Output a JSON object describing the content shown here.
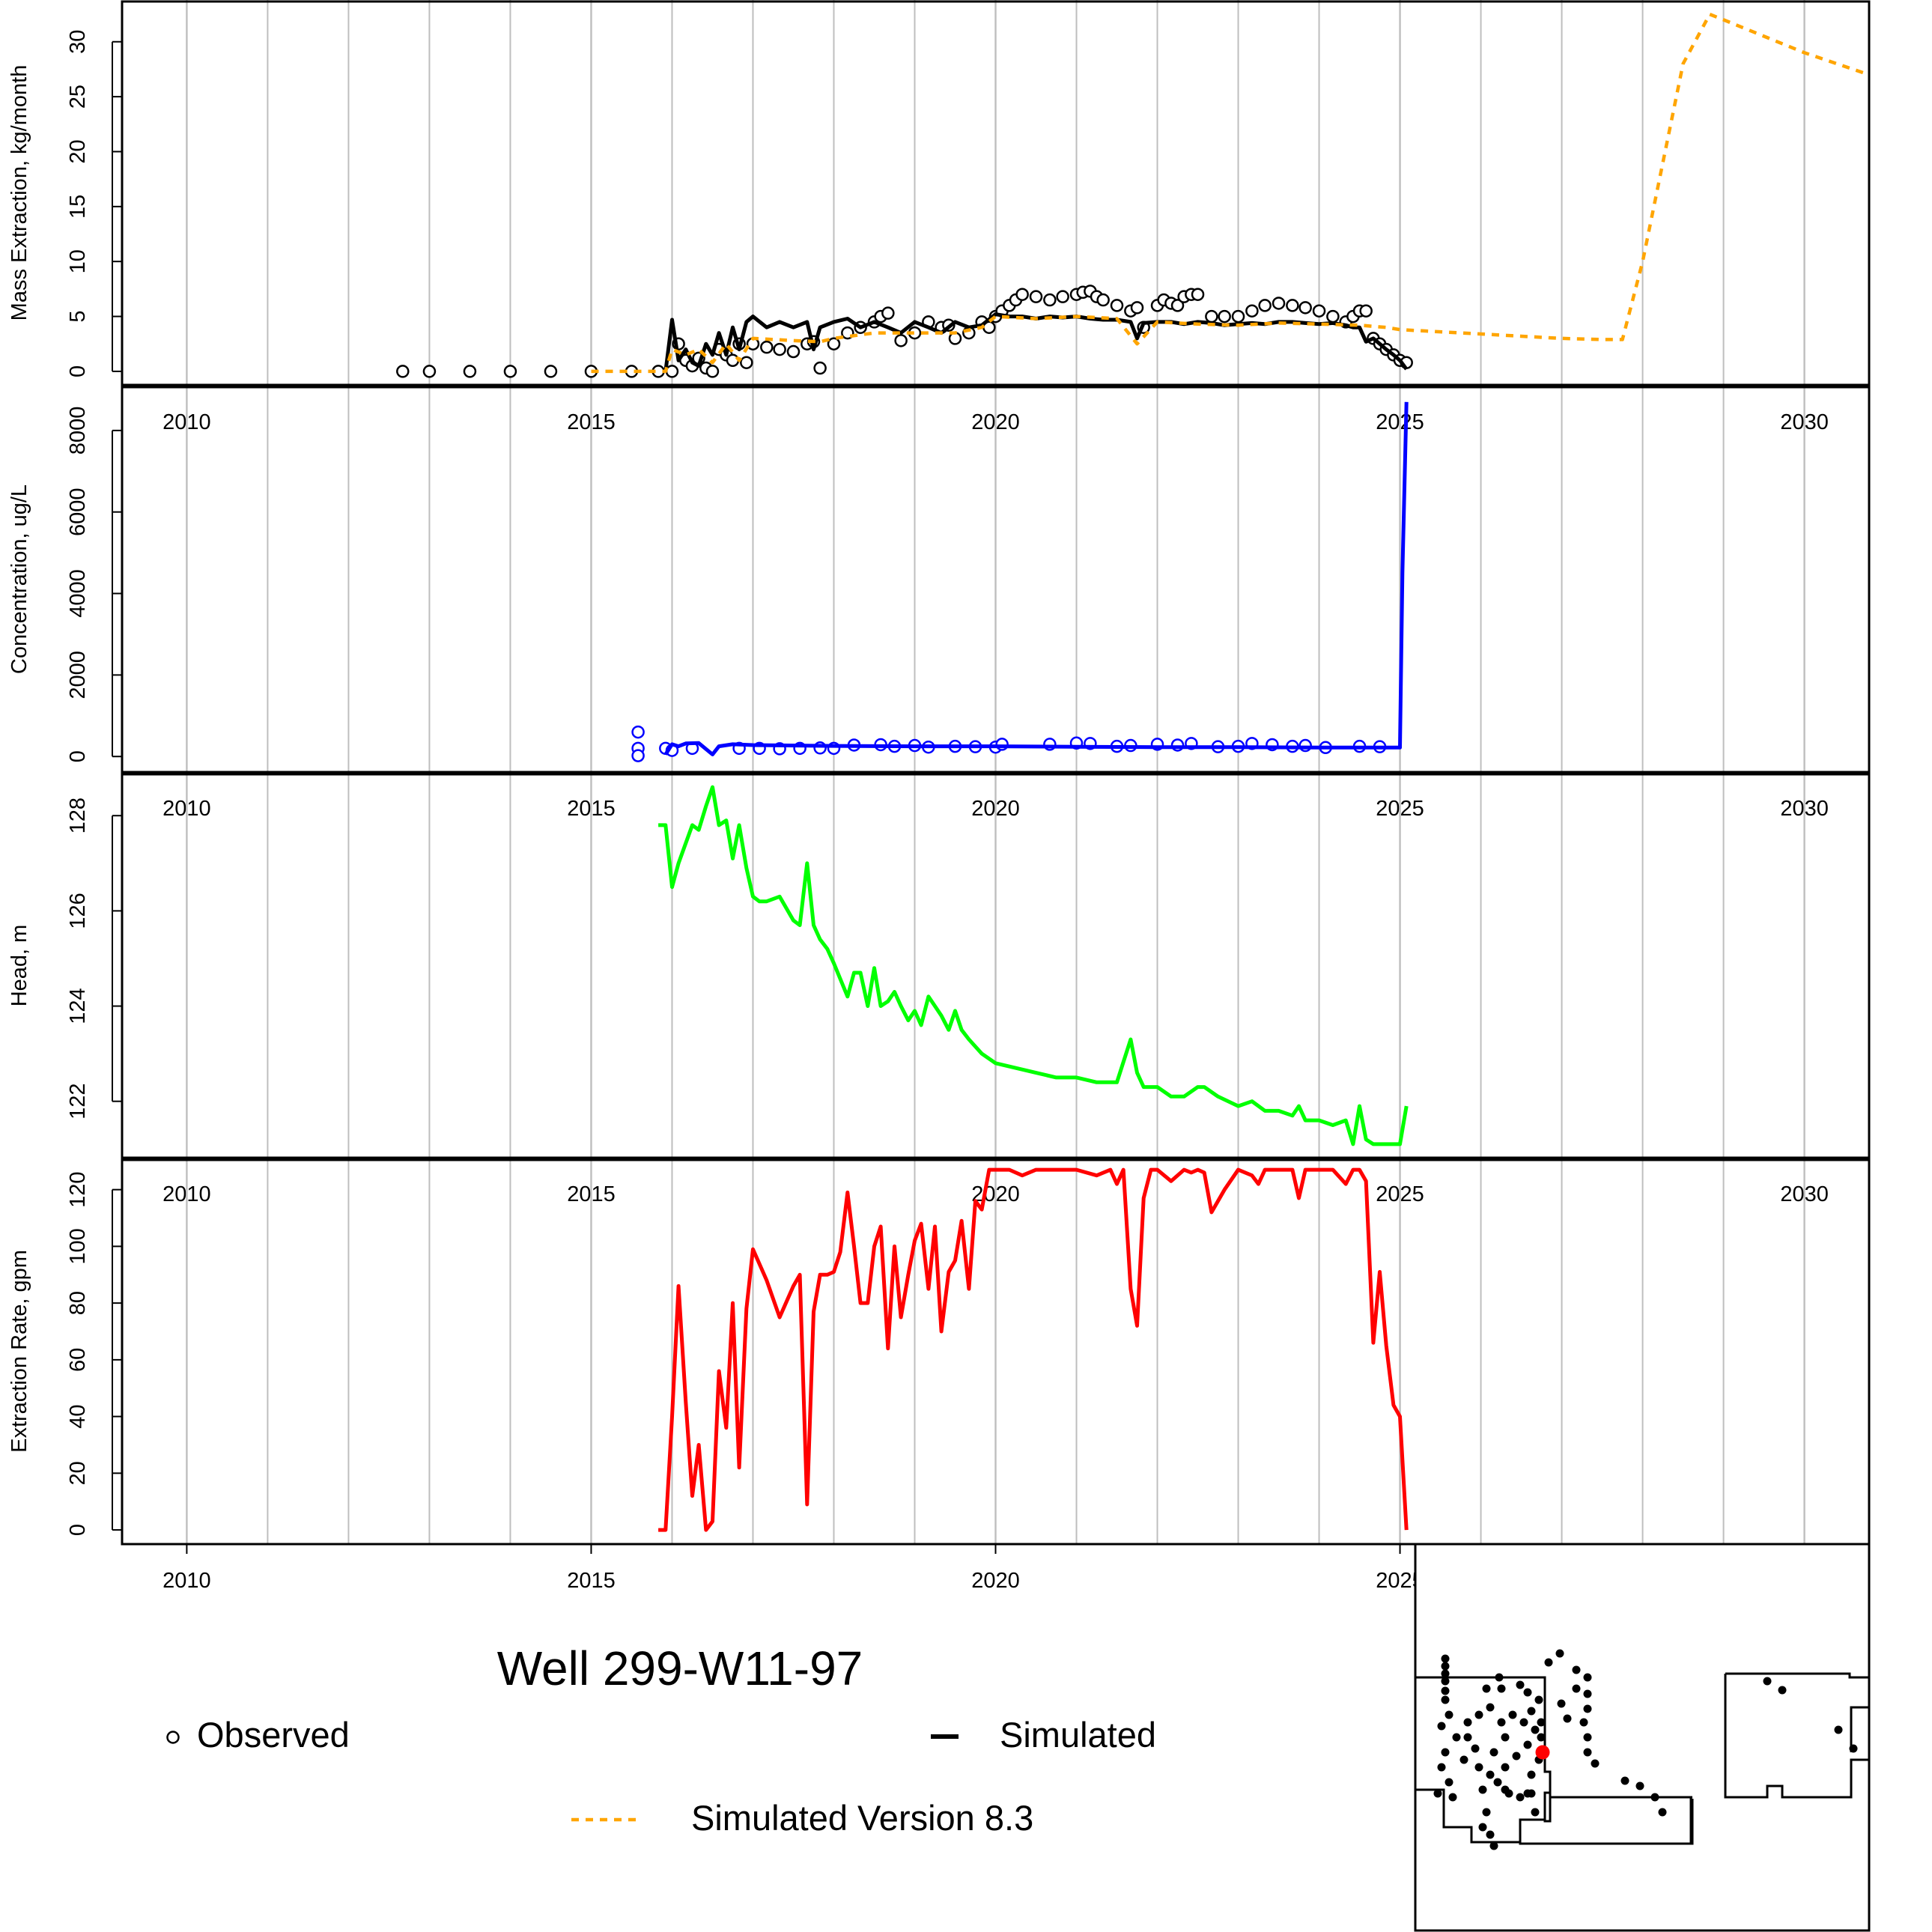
{
  "title": "Well 299-W11-97",
  "legend": {
    "observed": "Observed",
    "simulated": "Simulated",
    "simulated_v83": "Simulated Version 8.3"
  },
  "colors": {
    "observed": "#000000",
    "simulated": "#000000",
    "simulated_v83": "#FFA500",
    "concentration": "#0000FF",
    "head": "#00FF00",
    "extraction_rate": "#FF0000",
    "grid": "#BEBEBE",
    "map_selected_well": "#FF0000"
  },
  "chart_data": [
    {
      "type": "line",
      "panel": "mass",
      "xlabel": "",
      "ylabel": "Mass Extraction, kg/month",
      "xlim": [
        2009.2,
        2030.8
      ],
      "ylim": [
        -1.3,
        33.8
      ],
      "x_ticks": [
        2010,
        2015,
        2020,
        2025,
        2030
      ],
      "y_ticks": [
        0,
        5,
        10,
        15,
        20,
        25,
        30
      ],
      "grid": "vertical, yearly",
      "series": [
        {
          "name": "Observed",
          "style": "open-circles",
          "x": [
            2012.67,
            2013.0,
            2013.5,
            2014.0,
            2014.5,
            2015.0,
            2015.5,
            2015.83,
            2016.0,
            2016.08,
            2016.17,
            2016.25,
            2016.33,
            2016.42,
            2016.5,
            2016.58,
            2016.67,
            2016.75,
            2016.83,
            2016.92,
            2017.0,
            2017.17,
            2017.33,
            2017.5,
            2017.67,
            2017.75,
            2017.83,
            2018.0,
            2018.17,
            2018.33,
            2018.5,
            2018.58,
            2018.67,
            2018.83,
            2019.0,
            2019.17,
            2019.33,
            2019.42,
            2019.5,
            2019.67,
            2019.83,
            2019.92,
            2020.0,
            2020.08,
            2020.17,
            2020.25,
            2020.33,
            2020.5,
            2020.67,
            2020.83,
            2021.0,
            2021.08,
            2021.17,
            2021.25,
            2021.33,
            2021.5,
            2021.67,
            2021.75,
            2021.83,
            2022.0,
            2022.08,
            2022.17,
            2022.25,
            2022.33,
            2022.42,
            2022.5,
            2022.67,
            2022.83,
            2023.0,
            2023.17,
            2023.33,
            2023.5,
            2023.67,
            2023.83,
            2024.0,
            2024.17,
            2024.33,
            2024.42,
            2024.5,
            2024.58,
            2024.67,
            2024.75,
            2024.83,
            2024.92,
            2025.0,
            2025.08
          ],
          "y": [
            0,
            0,
            0,
            0,
            0,
            0,
            0,
            0,
            0,
            2.5,
            1.0,
            0.5,
            1.2,
            0.3,
            0,
            2.0,
            1.5,
            1.0,
            2.5,
            0.8,
            2.5,
            2.2,
            2.0,
            1.8,
            2.5,
            2.7,
            0.3,
            2.5,
            3.5,
            4.0,
            4.5,
            5.0,
            5.3,
            2.8,
            3.5,
            4.5,
            4.0,
            4.2,
            3.0,
            3.5,
            4.5,
            4.0,
            5.0,
            5.5,
            6.0,
            6.5,
            7.0,
            6.8,
            6.5,
            6.8,
            7.0,
            7.2,
            7.3,
            6.8,
            6.5,
            6.0,
            5.5,
            5.8,
            4.0,
            6.0,
            6.5,
            6.2,
            6.0,
            6.8,
            7.0,
            7.0,
            5.0,
            5.0,
            5.0,
            5.5,
            6.0,
            6.2,
            6.0,
            5.8,
            5.5,
            5.0,
            4.5,
            5.0,
            5.5,
            5.5,
            3.0,
            2.5,
            2.0,
            1.5,
            1.0,
            0.8
          ]
        },
        {
          "name": "Simulated",
          "style": "solid",
          "x": [
            2015.92,
            2016.0,
            2016.08,
            2016.17,
            2016.25,
            2016.33,
            2016.42,
            2016.5,
            2016.58,
            2016.67,
            2016.75,
            2016.83,
            2016.92,
            2017.0,
            2017.17,
            2017.33,
            2017.5,
            2017.67,
            2017.75,
            2017.83,
            2018.0,
            2018.17,
            2018.33,
            2018.5,
            2018.67,
            2018.83,
            2019.0,
            2019.17,
            2019.33,
            2019.5,
            2019.67,
            2019.83,
            2020.0,
            2020.17,
            2020.33,
            2020.5,
            2020.67,
            2020.83,
            2021.0,
            2021.17,
            2021.33,
            2021.5,
            2021.67,
            2021.75,
            2021.83,
            2022.0,
            2022.17,
            2022.33,
            2022.5,
            2022.67,
            2022.83,
            2023.0,
            2023.17,
            2023.33,
            2023.5,
            2023.67,
            2023.83,
            2024.0,
            2024.17,
            2024.33,
            2024.42,
            2024.5,
            2024.58,
            2024.67,
            2024.75,
            2024.83,
            2024.92,
            2025.0,
            2025.08
          ],
          "y": [
            0,
            4.7,
            1.0,
            2.0,
            0.8,
            0.5,
            2.5,
            1.5,
            3.5,
            1.5,
            4.0,
            2.0,
            4.5,
            5.0,
            4.0,
            4.5,
            4.0,
            4.5,
            2.0,
            4.0,
            4.5,
            4.8,
            4.0,
            4.5,
            4.0,
            3.5,
            4.5,
            4.0,
            3.5,
            4.5,
            4.0,
            4.2,
            5.2,
            5.0,
            5.0,
            4.8,
            5.0,
            4.9,
            5.0,
            4.8,
            4.7,
            4.7,
            4.5,
            3.0,
            4.4,
            4.5,
            4.5,
            4.3,
            4.5,
            4.4,
            4.2,
            4.3,
            4.4,
            4.3,
            4.5,
            4.5,
            4.4,
            4.3,
            4.4,
            4.2,
            4.0,
            4.0,
            2.7,
            3.0,
            2.5,
            2.0,
            1.5,
            1.0,
            0.2
          ]
        },
        {
          "name": "Simulated Version 8.3",
          "style": "dotted",
          "x": [
            2015.0,
            2015.92,
            2016.0,
            2016.17,
            2016.33,
            2016.5,
            2016.67,
            2016.83,
            2017.0,
            2017.5,
            2017.83,
            2018.0,
            2018.5,
            2019.0,
            2019.5,
            2019.83,
            2020.0,
            2020.5,
            2021.0,
            2021.5,
            2021.75,
            2022.0,
            2022.5,
            2023.0,
            2023.5,
            2024.0,
            2024.5,
            2024.83,
            2025.0,
            2025.5,
            2026.0,
            2026.5,
            2027.0,
            2027.5,
            2027.75,
            2028.0,
            2028.5,
            2028.83,
            2029.0,
            2030.0,
            2030.8
          ],
          "y": [
            0,
            0,
            2.0,
            1.5,
            2.0,
            0.8,
            2.5,
            1.0,
            3.0,
            2.8,
            2.7,
            3.0,
            3.5,
            3.5,
            3.5,
            4.0,
            5.0,
            4.8,
            5.0,
            4.8,
            2.5,
            4.5,
            4.3,
            4.2,
            4.4,
            4.3,
            4.2,
            4.0,
            3.8,
            3.6,
            3.4,
            3.2,
            3.0,
            2.9,
            2.9,
            10.0,
            28.0,
            32.5,
            32.0,
            29.0,
            27.0
          ]
        }
      ]
    },
    {
      "type": "line",
      "panel": "concentration",
      "xlabel": "",
      "ylabel": "Concentration, ug/L",
      "xlim": [
        2009.2,
        2030.8
      ],
      "ylim": [
        -400,
        9100
      ],
      "x_ticks": [
        2010,
        2015,
        2020,
        2025,
        2030
      ],
      "y_ticks": [
        0,
        2000,
        4000,
        6000,
        8000
      ],
      "grid": "vertical, yearly",
      "series": [
        {
          "name": "Observed",
          "style": "open-circles",
          "x": [
            2015.58,
            2015.58,
            2015.58,
            2015.92,
            2016.0,
            2016.25,
            2016.83,
            2017.08,
            2017.33,
            2017.58,
            2017.83,
            2018.0,
            2018.25,
            2018.58,
            2018.75,
            2019.0,
            2019.17,
            2019.5,
            2019.75,
            2020.0,
            2020.08,
            2020.67,
            2021.0,
            2021.17,
            2021.5,
            2021.67,
            2022.0,
            2022.25,
            2022.42,
            2022.75,
            2023.0,
            2023.17,
            2023.42,
            2023.67,
            2023.83,
            2024.08,
            2024.5,
            2024.75
          ],
          "y": [
            600,
            200,
            20,
            200,
            150,
            200,
            200,
            200,
            190,
            200,
            210,
            200,
            280,
            290,
            250,
            270,
            230,
            250,
            240,
            230,
            300,
            300,
            330,
            320,
            250,
            270,
            300,
            280,
            320,
            240,
            250,
            320,
            290,
            250,
            270,
            220,
            250,
            240
          ]
        },
        {
          "name": "Simulated",
          "style": "solid",
          "x": [
            2015.92,
            2016.0,
            2016.08,
            2016.17,
            2016.33,
            2016.5,
            2016.58,
            2016.75,
            2017.0,
            2018.0,
            2019.0,
            2020.0,
            2021.0,
            2022.0,
            2023.0,
            2024.0,
            2025.0,
            2025.03,
            2025.08
          ],
          "y": [
            50,
            300,
            250,
            320,
            330,
            50,
            250,
            300,
            280,
            260,
            250,
            250,
            240,
            230,
            230,
            220,
            220,
            4500,
            8700
          ]
        }
      ]
    },
    {
      "type": "line",
      "panel": "head",
      "xlabel": "",
      "ylabel": "Head, m",
      "xlim": [
        2009.2,
        2030.8
      ],
      "ylim": [
        120.8,
        128.9
      ],
      "x_ticks": [
        2010,
        2015,
        2020,
        2025,
        2030
      ],
      "y_ticks": [
        122,
        124,
        126,
        128
      ],
      "grid": "vertical, yearly",
      "series": [
        {
          "name": "Simulated",
          "style": "solid",
          "x": [
            2015.83,
            2015.92,
            2016.0,
            2016.08,
            2016.25,
            2016.33,
            2016.42,
            2016.5,
            2016.58,
            2016.67,
            2016.75,
            2016.83,
            2016.92,
            2017.0,
            2017.08,
            2017.17,
            2017.33,
            2017.5,
            2017.58,
            2017.67,
            2017.75,
            2017.83,
            2017.92,
            2018.0,
            2018.17,
            2018.25,
            2018.33,
            2018.42,
            2018.5,
            2018.58,
            2018.67,
            2018.75,
            2018.83,
            2018.92,
            2019.0,
            2019.08,
            2019.17,
            2019.25,
            2019.33,
            2019.42,
            2019.5,
            2019.58,
            2019.67,
            2019.83,
            2020.0,
            2020.25,
            2020.5,
            2020.75,
            2021.0,
            2021.25,
            2021.42,
            2021.5,
            2021.67,
            2021.75,
            2021.83,
            2022.0,
            2022.17,
            2022.33,
            2022.5,
            2022.58,
            2022.75,
            2023.0,
            2023.17,
            2023.33,
            2023.5,
            2023.67,
            2023.75,
            2023.83,
            2024.0,
            2024.17,
            2024.33,
            2024.42,
            2024.5,
            2024.58,
            2024.67,
            2024.75,
            2024.92,
            2025.0,
            2025.08
          ],
          "y": [
            127.8,
            127.8,
            126.5,
            127.0,
            127.8,
            127.7,
            128.2,
            128.6,
            127.8,
            127.9,
            127.1,
            127.8,
            126.9,
            126.3,
            126.2,
            126.2,
            126.3,
            125.8,
            125.7,
            127.0,
            125.7,
            125.4,
            125.2,
            124.9,
            124.2,
            124.7,
            124.7,
            124.0,
            124.8,
            124.0,
            124.1,
            124.3,
            124.0,
            123.7,
            123.9,
            123.6,
            124.2,
            124.0,
            123.8,
            123.5,
            123.9,
            123.5,
            123.3,
            123.0,
            122.8,
            122.7,
            122.6,
            122.5,
            122.5,
            122.4,
            122.4,
            122.4,
            123.3,
            122.6,
            122.3,
            122.3,
            122.1,
            122.1,
            122.3,
            122.3,
            122.1,
            121.9,
            122.0,
            121.8,
            121.8,
            121.7,
            121.9,
            121.6,
            121.6,
            121.5,
            121.6,
            121.1,
            121.9,
            121.2,
            121.1,
            121.1,
            121.1,
            121.1,
            121.9
          ]
        }
      ]
    },
    {
      "type": "line",
      "panel": "extraction_rate",
      "xlabel": "",
      "ylabel": "Extraction Rate, gpm",
      "xlim": [
        2009.2,
        2030.8
      ],
      "ylim": [
        -5,
        131
      ],
      "x_ticks": [
        2010,
        2015,
        2020,
        2025,
        2030
      ],
      "y_ticks": [
        0,
        20,
        40,
        60,
        80,
        100,
        120
      ],
      "grid": "vertical, yearly",
      "series": [
        {
          "name": "Simulated",
          "style": "solid",
          "x": [
            2015.83,
            2015.92,
            2016.0,
            2016.08,
            2016.17,
            2016.25,
            2016.33,
            2016.42,
            2016.5,
            2016.58,
            2016.67,
            2016.75,
            2016.83,
            2016.92,
            2017.0,
            2017.17,
            2017.33,
            2017.5,
            2017.58,
            2017.67,
            2017.75,
            2017.83,
            2017.92,
            2018.0,
            2018.08,
            2018.17,
            2018.25,
            2018.33,
            2018.42,
            2018.5,
            2018.58,
            2018.67,
            2018.75,
            2018.83,
            2018.92,
            2019.0,
            2019.08,
            2019.17,
            2019.25,
            2019.33,
            2019.42,
            2019.5,
            2019.58,
            2019.67,
            2019.75,
            2019.83,
            2019.92,
            2020.0,
            2020.17,
            2020.33,
            2020.5,
            2020.75,
            2021.0,
            2021.25,
            2021.42,
            2021.5,
            2021.58,
            2021.67,
            2021.75,
            2021.83,
            2021.92,
            2022.0,
            2022.17,
            2022.33,
            2022.42,
            2022.5,
            2022.58,
            2022.67,
            2022.83,
            2023.0,
            2023.17,
            2023.25,
            2023.33,
            2023.5,
            2023.67,
            2023.75,
            2023.83,
            2024.0,
            2024.17,
            2024.33,
            2024.42,
            2024.5,
            2024.58,
            2024.67,
            2024.75,
            2024.83,
            2024.92,
            2025.0,
            2025.08
          ],
          "y": [
            0,
            0,
            40,
            86,
            45,
            12,
            30,
            0,
            3,
            56,
            36,
            80,
            22,
            78,
            99,
            88,
            75,
            86,
            90,
            9,
            77,
            90,
            90,
            91,
            98,
            119,
            100,
            80,
            80,
            100,
            107,
            64,
            100,
            75,
            90,
            102,
            108,
            85,
            107,
            70,
            91,
            95,
            109,
            85,
            116,
            113,
            127,
            127,
            127,
            125,
            127,
            127,
            127,
            125,
            127,
            122,
            127,
            85,
            72,
            117,
            127,
            127,
            123,
            127,
            126,
            127,
            126,
            112,
            120,
            127,
            125,
            122,
            127,
            127,
            127,
            117,
            127,
            127,
            127,
            122,
            127,
            127,
            123,
            66,
            91,
            65,
            44,
            40,
            0
          ]
        }
      ]
    }
  ]
}
